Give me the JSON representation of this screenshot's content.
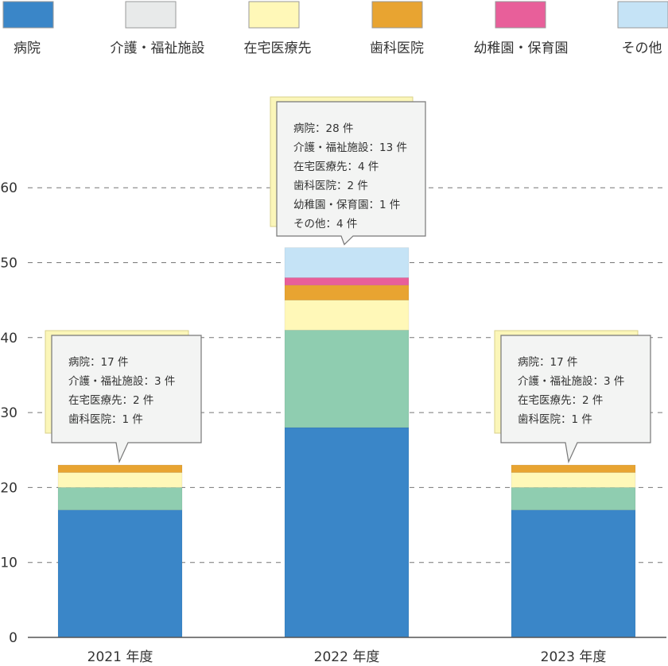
{
  "chart_data": {
    "type": "bar",
    "stacked": true,
    "categories": [
      "2021 年度",
      "2022 年度",
      "2023 年度"
    ],
    "series": [
      {
        "name": "病院",
        "color": "#3a86c8",
        "values": [
          17,
          28,
          17
        ]
      },
      {
        "name": "介護・福祉施設",
        "color": "#8fcdb0",
        "legend_color": "#e8eaea",
        "values": [
          3,
          13,
          3
        ]
      },
      {
        "name": "在宅医療先",
        "color": "#fff8b8",
        "values": [
          2,
          4,
          2
        ]
      },
      {
        "name": "歯科医院",
        "color": "#e8a431",
        "values": [
          1,
          2,
          1
        ]
      },
      {
        "name": "幼稚園・保育園",
        "color": "#e85f9a",
        "values": [
          0,
          1,
          0
        ]
      },
      {
        "name": "その他",
        "color": "#c5e3f6",
        "values": [
          0,
          4,
          0
        ]
      }
    ],
    "y_ticks": [
      0,
      10,
      20,
      30,
      40,
      50,
      60
    ],
    "ylim": [
      0,
      60
    ],
    "grid": "dashed horizontal",
    "legend_position": "top",
    "tooltips": [
      [
        "病院：17 件",
        "介護・福祉施設：3 件",
        "在宅医療先：2 件",
        "歯科医院：1 件"
      ],
      [
        "病院：28 件",
        "介護・福祉施設：13 件",
        "在宅医療先：4 件",
        "歯科医院：2 件",
        "幼稚園・保育園：1 件",
        "その他：4 件"
      ],
      [
        "病院：17 件",
        "介護・福祉施設：3 件",
        "在宅医療先：2 件",
        "歯科医院：1 件"
      ]
    ]
  }
}
